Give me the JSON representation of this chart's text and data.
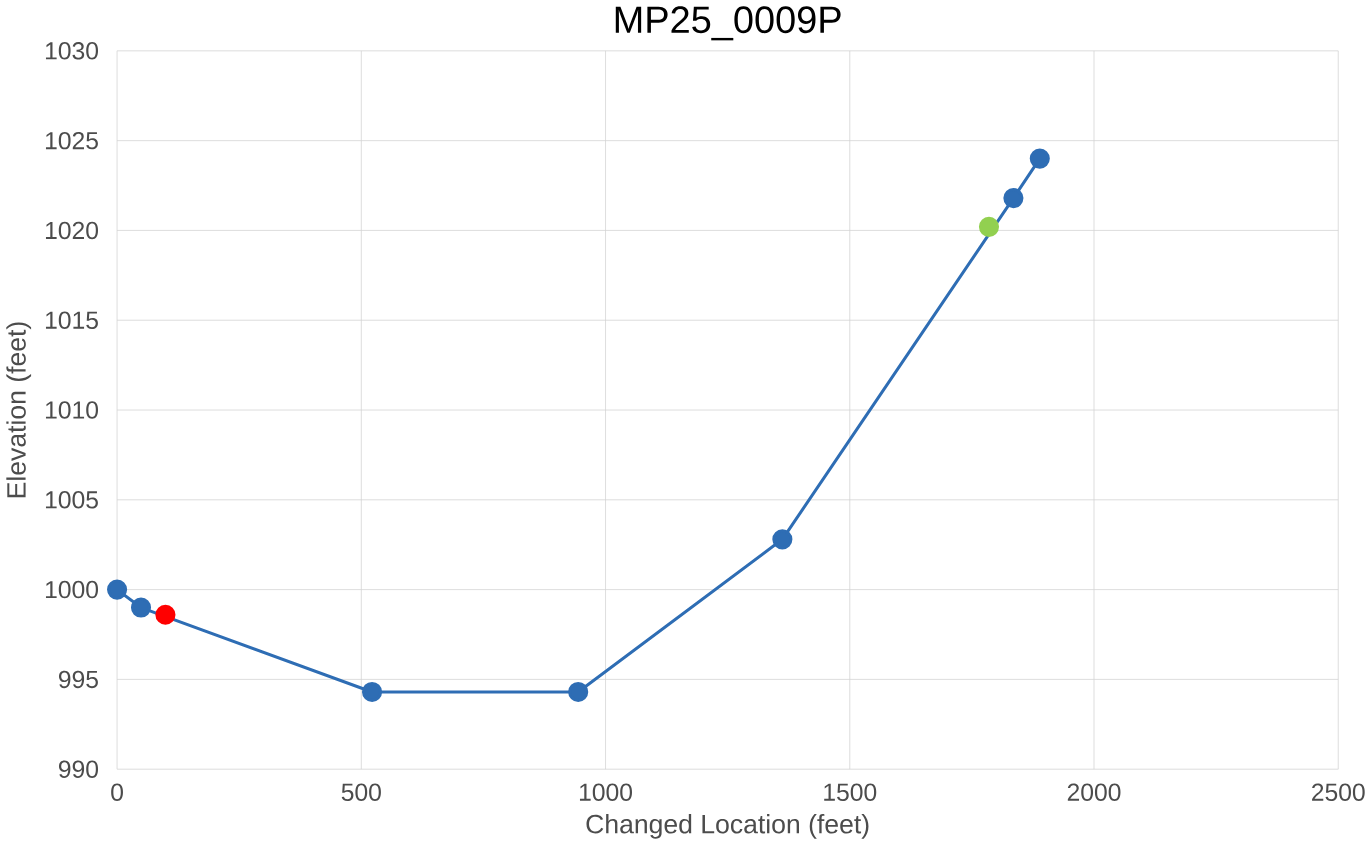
{
  "chart_data": {
    "type": "line",
    "title": "MP25_0009P",
    "xlabel": "Changed Location (feet)",
    "ylabel": "Elevation (feet)",
    "series": [
      {
        "color": "#2e6db4",
        "x": [
          0,
          49,
          522,
          944,
          1362,
          1835,
          1889
        ],
        "values": [
          1000,
          999.0,
          994.3,
          994.3,
          1002.8,
          1021.8,
          1024.0
        ]
      },
      {
        "type": "scatter",
        "color": "#ff0000",
        "x": [
          99
        ],
        "values": [
          998.6
        ]
      },
      {
        "type": "scatter",
        "color": "#92d050",
        "x": [
          1785
        ],
        "values": [
          1020.2
        ]
      }
    ],
    "xlim": [
      0,
      2500
    ],
    "xticks": [
      0,
      500,
      1000,
      1500,
      2000,
      2500
    ],
    "ylim": [
      990,
      1030
    ],
    "yticks": [
      990,
      995,
      1000,
      1005,
      1010,
      1015,
      1020,
      1025,
      1030
    ],
    "grid": true,
    "marker": "circle"
  }
}
